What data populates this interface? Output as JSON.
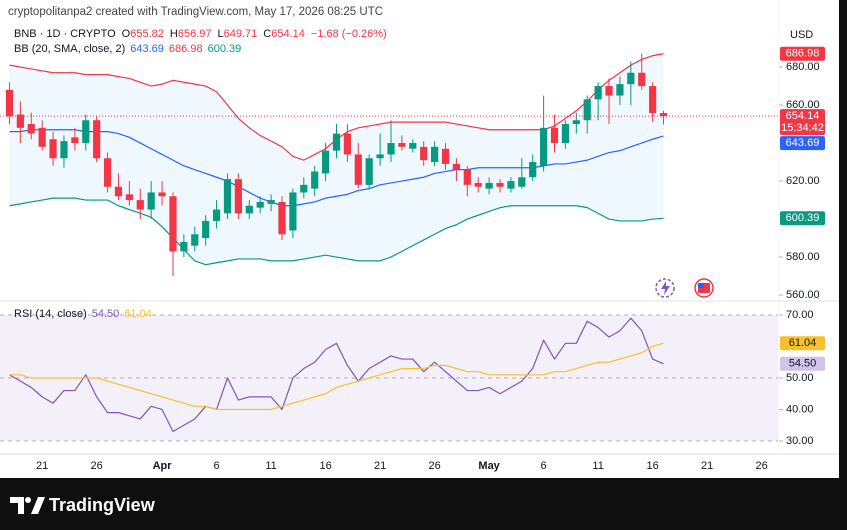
{
  "header": {
    "text": "cryptopolitanpa2 created with TradingView.com, May 17, 2026 08:25 UTC"
  },
  "footer": {
    "brand": "TradingView"
  },
  "chart_data": [
    {
      "type": "candlestick",
      "title": "BNB · 1D · CRYPTO",
      "ohlc_legend": [
        {
          "label": "O",
          "value": "655.82"
        },
        {
          "label": "H",
          "value": "656.97"
        },
        {
          "label": "L",
          "value": "649.71"
        },
        {
          "label": "C",
          "value": "654.14"
        }
      ],
      "change": "−1.68 (−0.26%)",
      "countdown": "15:34:42",
      "y_unit": "USD",
      "up_color": "#089981",
      "down_color": "#f23645",
      "categories": [
        null,
        null,
        null,
        "21",
        null,
        null,
        null,
        null,
        "26",
        null,
        null,
        null,
        null,
        null,
        "Apr",
        null,
        null,
        null,
        null,
        "6",
        null,
        null,
        null,
        null,
        "11",
        null,
        null,
        null,
        null,
        "16",
        null,
        null,
        null,
        null,
        "21",
        null,
        null,
        null,
        null,
        "26",
        null,
        null,
        null,
        null,
        "May",
        null,
        null,
        null,
        null,
        "6",
        null,
        null,
        null,
        null,
        "11",
        null,
        null,
        null,
        null,
        "16",
        null,
        null,
        null,
        null,
        "21",
        null,
        null,
        null,
        null,
        "26",
        null
      ],
      "open": [
        668,
        655,
        650,
        648,
        642,
        632,
        643,
        640,
        652,
        632,
        617,
        613,
        610,
        605,
        614,
        612,
        583,
        586,
        590,
        599,
        603,
        621,
        603,
        606,
        608,
        609,
        594,
        614,
        616,
        624,
        636,
        645,
        634,
        618,
        632,
        634,
        640,
        637,
        638,
        630,
        637,
        629,
        626,
        619,
        616,
        619,
        616,
        617,
        622,
        628,
        648,
        640,
        650,
        652,
        663,
        670,
        665,
        671,
        677,
        670,
        655.82,
        null,
        null,
        null,
        null,
        null,
        null,
        null,
        null,
        null,
        null
      ],
      "high": [
        672,
        662,
        656,
        652,
        646,
        644,
        648,
        655,
        654,
        635,
        624,
        620,
        616,
        620,
        620,
        614,
        592,
        596,
        602,
        610,
        624,
        624,
        610,
        612,
        613,
        612,
        616,
        622,
        628,
        640,
        650,
        650,
        640,
        634,
        645,
        652,
        644,
        642,
        641,
        641,
        640,
        632,
        628,
        622,
        622,
        621,
        622,
        632,
        634,
        665,
        655,
        652,
        656,
        665,
        672,
        674,
        675,
        683,
        687,
        672,
        656.97,
        null,
        null,
        null,
        null,
        null,
        null,
        null,
        null,
        null,
        null
      ],
      "low": [
        650,
        640,
        642,
        636,
        628,
        627,
        636,
        636,
        630,
        614,
        610,
        607,
        600,
        600,
        607,
        570,
        580,
        583,
        586,
        595,
        600,
        600,
        600,
        603,
        604,
        589,
        590,
        611,
        612,
        620,
        632,
        630,
        616,
        616,
        628,
        630,
        636,
        635,
        628,
        628,
        626,
        620,
        612,
        614,
        613,
        614,
        614,
        616,
        620,
        625,
        635,
        637,
        645,
        645,
        652,
        650,
        660,
        660,
        668,
        651,
        649.71,
        null,
        null,
        null,
        null,
        null,
        null,
        null,
        null,
        null,
        null
      ],
      "close": [
        654,
        648,
        645,
        638,
        632,
        641,
        640,
        652,
        632,
        617,
        612,
        610,
        605,
        614,
        612,
        583,
        588,
        592,
        599,
        605,
        621,
        603,
        607,
        609,
        610,
        592,
        614,
        618,
        625,
        636,
        645,
        634,
        618,
        632,
        634,
        640,
        638,
        640,
        631,
        638,
        629,
        626,
        618,
        617,
        619,
        617,
        620,
        622,
        630,
        648,
        640,
        650,
        652,
        663,
        670,
        665,
        671,
        677,
        670,
        655.8,
        654.14,
        null,
        null,
        null,
        null,
        null,
        null,
        null,
        null,
        null,
        null
      ],
      "overlay": {
        "name": "BB (20, SMA, close, 2)",
        "fill": "#2196f3",
        "series": [
          {
            "color": "#2962ff",
            "values": [
              646,
              646,
              647,
              647,
              647,
              647,
              647,
              646,
              646,
              646,
              645,
              643,
              640,
              637,
              634,
              631,
              628,
              626,
              624,
              622,
              620,
              617,
              614,
              611,
              609,
              607,
              607,
              608,
              609,
              611,
              612,
              613,
              615,
              616,
              618,
              619,
              620,
              621,
              622,
              624,
              625,
              626,
              626,
              627,
              627,
              627,
              627,
              627,
              627,
              628,
              629,
              629,
              630,
              631,
              633,
              635,
              636,
              638,
              640,
              642,
              643.69,
              null,
              null,
              null,
              null,
              null,
              null,
              null,
              null,
              null,
              null
            ]
          },
          {
            "color": "#f23645",
            "values": [
              681,
              680,
              679,
              678,
              677,
              677,
              677,
              676,
              676,
              676,
              675,
              674,
              672,
              670,
              671,
              673,
              672,
              671,
              670,
              667,
              660,
              653,
              648,
              644,
              641,
              638,
              633,
              631,
              634,
              637,
              642,
              646,
              648,
              649,
              650,
              651,
              651,
              651,
              651,
              651,
              651,
              650,
              649,
              648,
              647,
              647,
              647,
              647,
              647,
              647,
              649,
              653,
              657,
              662,
              668,
              673,
              677,
              681,
              684,
              686,
              686.98,
              null,
              null,
              null,
              null,
              null,
              null,
              null,
              null,
              null,
              null
            ]
          },
          {
            "color": "#089981",
            "values": [
              607,
              608,
              609,
              610,
              611,
              611,
              611,
              610,
              610,
              610,
              607,
              605,
              603,
              601,
              596,
              590,
              584,
              578,
              576,
              577,
              578,
              579,
              579,
              579,
              578,
              578,
              578,
              579,
              580,
              581,
              580,
              579,
              578,
              578,
              578,
              580,
              583,
              586,
              589,
              592,
              595,
              597,
              600,
              602,
              604,
              606,
              607,
              607,
              607,
              607,
              607,
              607,
              607,
              606,
              603,
              600,
              599,
              599,
              599,
              600,
              600.39,
              null,
              null,
              null,
              null,
              null,
              null,
              null,
              null,
              null,
              null
            ]
          }
        ]
      },
      "ylim": [
        557.4,
        703.7
      ],
      "yticks": [
        {
          "value": 560,
          "label": "560.00"
        },
        {
          "value": 580,
          "label": "580.00"
        },
        {
          "value": 620,
          "label": "620.00"
        },
        {
          "value": 660,
          "label": "660.00"
        },
        {
          "value": 680,
          "label": "680.00"
        }
      ]
    },
    {
      "type": "line",
      "title": "RSI (14, close)",
      "series": [
        {
          "color": "#7e57c2",
          "values": [
            51,
            49,
            47,
            44,
            42,
            46,
            46,
            51,
            44,
            39,
            39,
            38,
            37,
            41,
            40,
            33,
            35,
            37,
            41,
            40,
            50,
            43,
            44,
            44,
            44,
            40,
            50,
            53,
            55,
            59,
            61,
            54,
            49,
            53,
            55,
            57,
            56,
            56,
            52,
            55,
            52,
            49,
            46,
            46,
            47,
            45,
            47,
            49,
            53,
            62,
            56,
            61,
            61,
            68,
            66,
            63,
            65,
            69,
            65,
            56,
            54.5,
            null,
            null,
            null,
            null,
            null,
            null,
            null,
            null,
            null,
            null
          ],
          "value_labels": [
            null,
            null,
            null,
            null,
            null,
            null,
            null,
            null,
            null,
            null,
            null,
            null,
            null,
            null,
            null,
            null,
            null,
            null,
            null,
            null,
            null,
            null,
            null,
            null,
            null,
            null,
            null,
            null,
            null,
            null,
            null,
            null,
            null,
            null,
            null,
            null,
            null,
            null,
            null,
            null,
            null,
            null,
            null,
            null,
            null,
            null,
            null,
            null,
            null,
            null,
            null,
            null,
            null,
            null,
            null,
            null,
            null,
            null,
            null,
            null,
            "54.50",
            null,
            null,
            null,
            null,
            null,
            null,
            null,
            null,
            null,
            null
          ]
        },
        {
          "color": "#f9c02d",
          "values": [
            51,
            51,
            50,
            50,
            50,
            50,
            50,
            50,
            50,
            49,
            48,
            47,
            46,
            45,
            44,
            43,
            42,
            41,
            41,
            40,
            40,
            40,
            40,
            40,
            40,
            41,
            42,
            43,
            44,
            45,
            47,
            48,
            49,
            50,
            51,
            52,
            53,
            53,
            53,
            54,
            54,
            53,
            52,
            52,
            51,
            51,
            51,
            51,
            51,
            51,
            52,
            52,
            53,
            54,
            55,
            55,
            56,
            57,
            58,
            60,
            61.04,
            null,
            null,
            null,
            null,
            null,
            null,
            null,
            null,
            null,
            null
          ]
        }
      ],
      "levels": [
        30,
        50,
        70
      ],
      "level_fill": "#7e57c2",
      "ylim": [
        26.5,
        73.8
      ],
      "yticks": [
        {
          "value": 30,
          "label": "30.00"
        },
        {
          "value": 40,
          "label": "40.00"
        },
        {
          "value": 50,
          "label": "50.00"
        },
        {
          "value": 70,
          "label": "70.00"
        }
      ]
    }
  ]
}
